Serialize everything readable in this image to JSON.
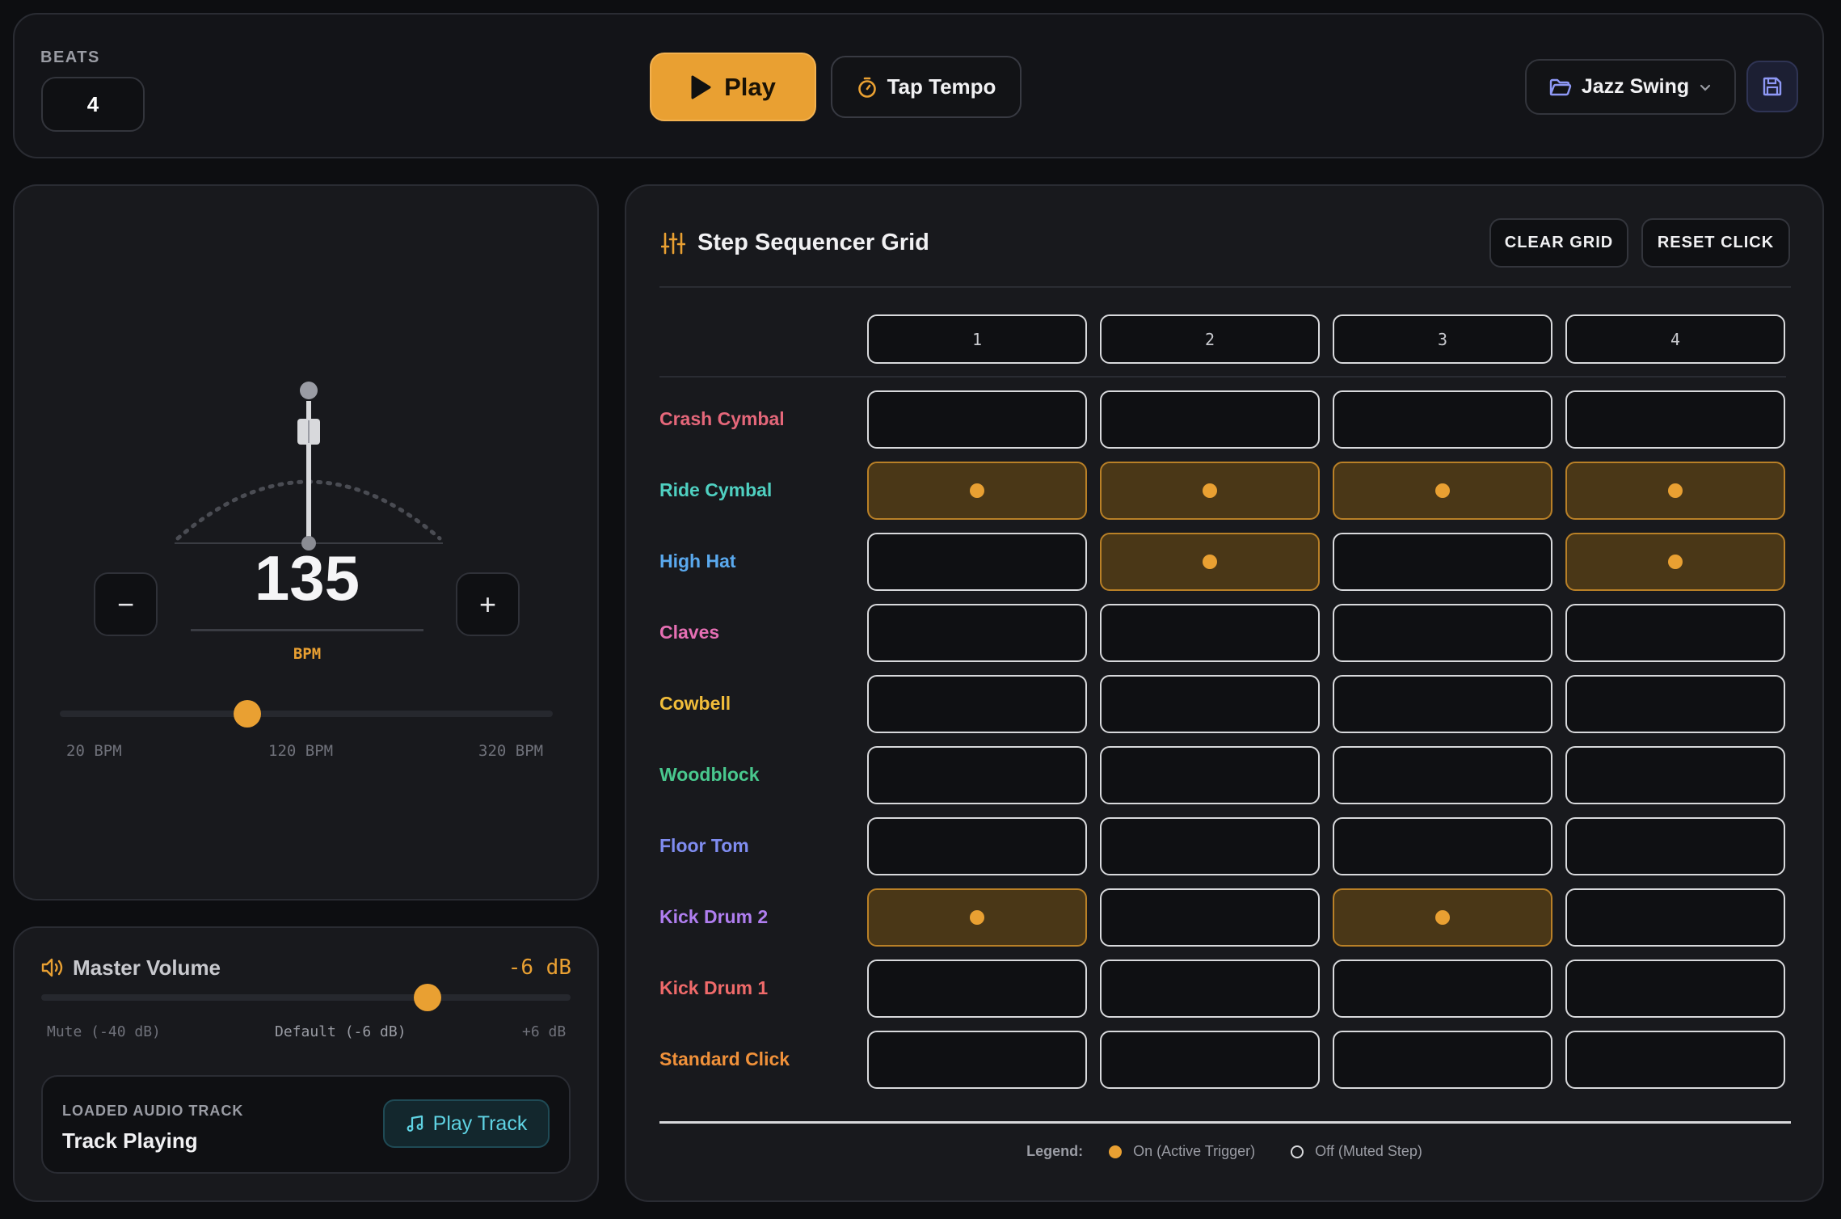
{
  "header": {
    "beats_label": "BEATS",
    "beats_value": "4",
    "play_label": "Play",
    "tap_tempo_label": "Tap Tempo",
    "preset_label": "Jazz Swing"
  },
  "tempo": {
    "bpm": "135",
    "unit": "BPM",
    "minus": "−",
    "plus": "+",
    "slider_min": "20 BPM",
    "slider_mid": "120 BPM",
    "slider_max": "320 BPM",
    "slider_fraction": 0.38
  },
  "volume": {
    "title": "Master Volume",
    "value": "-6 dB",
    "min_label": "Mute (-40 dB)",
    "mid_label": "Default (-6 dB)",
    "max_label": "+6 dB",
    "slider_fraction": 0.73,
    "track_label": "LOADED AUDIO TRACK",
    "track_status": "Track Playing",
    "play_track_label": "Play Track"
  },
  "sequencer": {
    "title": "Step Sequencer Grid",
    "clear_label": "CLEAR GRID",
    "reset_label": "RESET CLICK",
    "steps": [
      "1",
      "2",
      "3",
      "4"
    ],
    "rows": [
      {
        "name": "Crash Cymbal",
        "color": "#e5677a",
        "steps": [
          false,
          false,
          false,
          false
        ]
      },
      {
        "name": "Ride Cymbal",
        "color": "#4fd0c1",
        "steps": [
          true,
          true,
          true,
          true
        ]
      },
      {
        "name": "High Hat",
        "color": "#5aa9ee",
        "steps": [
          false,
          true,
          false,
          true
        ]
      },
      {
        "name": "Claves",
        "color": "#e56fb3",
        "steps": [
          false,
          false,
          false,
          false
        ]
      },
      {
        "name": "Cowbell",
        "color": "#f0bc3a",
        "steps": [
          false,
          false,
          false,
          false
        ]
      },
      {
        "name": "Woodblock",
        "color": "#49c88e",
        "steps": [
          false,
          false,
          false,
          false
        ]
      },
      {
        "name": "Floor Tom",
        "color": "#7f8cf0",
        "steps": [
          false,
          false,
          false,
          false
        ]
      },
      {
        "name": "Kick Drum 2",
        "color": "#b07ef0",
        "steps": [
          true,
          false,
          true,
          false
        ]
      },
      {
        "name": "Kick Drum 1",
        "color": "#ef6a6a",
        "steps": [
          false,
          false,
          false,
          false
        ]
      },
      {
        "name": "Standard Click",
        "color": "#f0913a",
        "steps": [
          false,
          false,
          false,
          false
        ]
      }
    ],
    "legend_title": "Legend:",
    "legend_on": "On (Active Trigger)",
    "legend_off": "Off (Muted Step)"
  },
  "colors": {
    "accent": "#e9a032",
    "background": "#0d0e11",
    "panel": "#18191d"
  },
  "icons": [
    "play-icon",
    "stopwatch-icon",
    "folder-icon",
    "chevron-down-icon",
    "save-icon",
    "speaker-icon",
    "music-note-icon",
    "sliders-icon"
  ]
}
